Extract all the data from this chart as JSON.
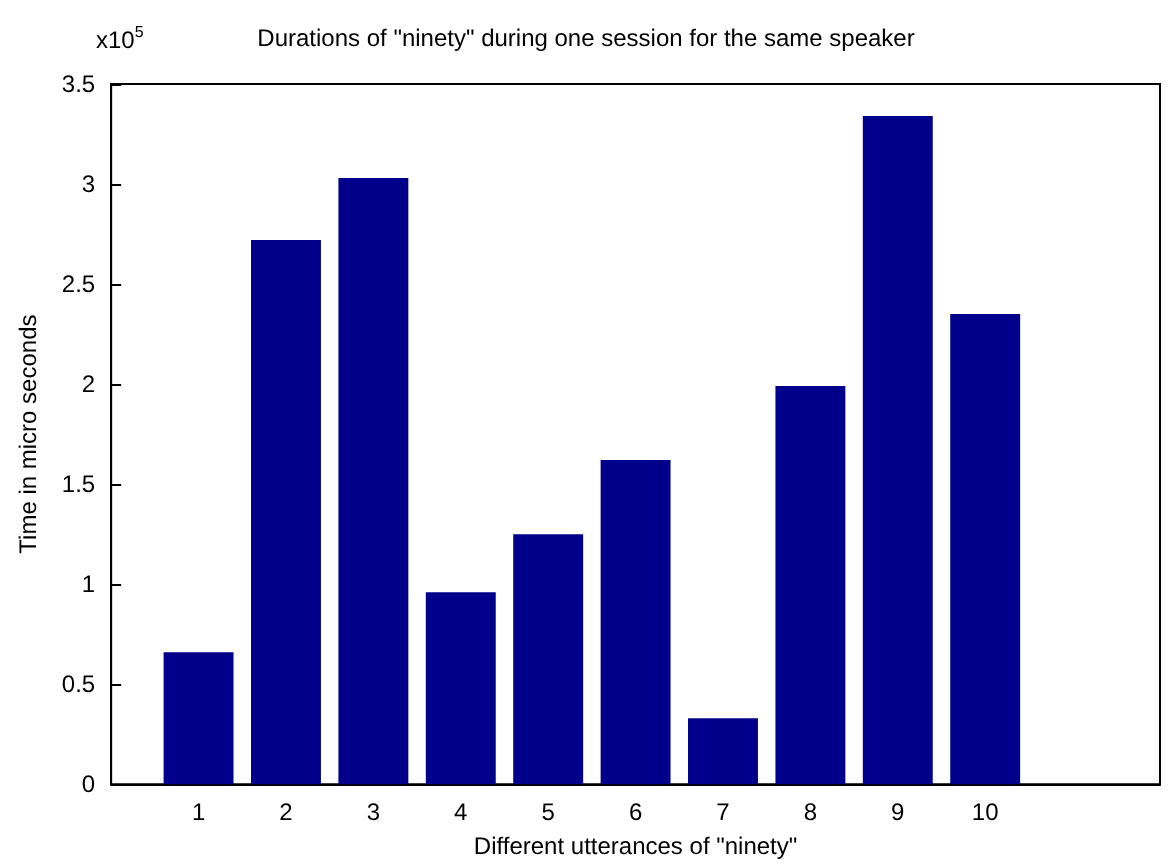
{
  "chart_data": {
    "type": "bar",
    "title": "Durations of \"ninety\" during one session for the same speaker",
    "xlabel": "Different utterances of \"ninety\"",
    "ylabel": "Time in micro seconds",
    "annotations": [
      "x10$^{5}$"
    ],
    "x": [
      1,
      2,
      3,
      4,
      5,
      6,
      7,
      8,
      9,
      10
    ],
    "values": [
      0.66,
      2.72,
      3.03,
      0.96,
      1.25,
      1.62,
      0.33,
      1.99,
      3.34,
      2.35
    ],
    "color": "#00008b",
    "xlim": [
      0,
      12
    ],
    "xticks": [
      1,
      2,
      3,
      4,
      5,
      6,
      7,
      8,
      9,
      10
    ],
    "ylim": [
      0,
      3.5
    ],
    "yticks": [
      0,
      0.5,
      1,
      1.5,
      2,
      2.5,
      3,
      3.5
    ],
    "grid": false
  }
}
